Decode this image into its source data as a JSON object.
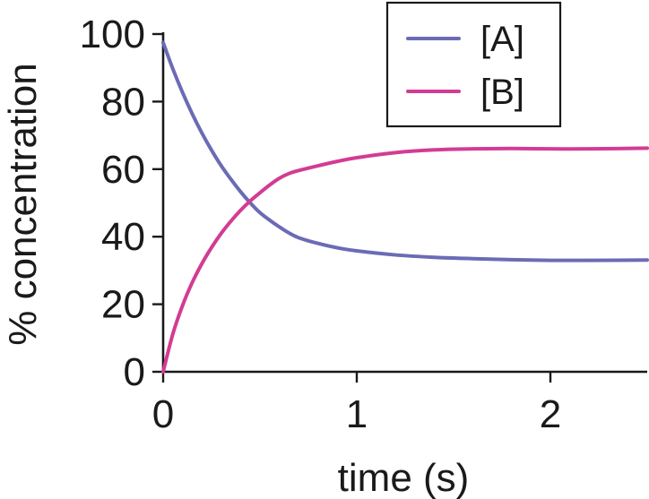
{
  "chart_data": {
    "type": "line",
    "title": "",
    "xlabel": "time (s)",
    "ylabel": "% concentration",
    "xlim": [
      0,
      2.5
    ],
    "ylim": [
      0,
      100
    ],
    "xticks": [
      0,
      1,
      2
    ],
    "yticks": [
      0,
      20,
      40,
      60,
      80,
      100
    ],
    "grid": false,
    "legend_position": "top-right",
    "series": [
      {
        "name": "[A]",
        "color": "#6b6bb5",
        "x": [
          0,
          0.05,
          0.1,
          0.15,
          0.2,
          0.25,
          0.3,
          0.35,
          0.4,
          0.45,
          0.5,
          0.55,
          0.6,
          0.65,
          0.7,
          0.8,
          0.9,
          1.0,
          1.2,
          1.4,
          1.6,
          1.8,
          2.0,
          2.2,
          2.5
        ],
        "y": [
          97.5,
          89.7,
          82.7,
          76.4,
          70.7,
          65.6,
          61.0,
          57.0,
          53.3,
          50.0,
          47.1,
          44.9,
          42.9,
          41.1,
          39.7,
          38.0,
          36.7,
          35.8,
          34.6,
          33.9,
          33.5,
          33.2,
          33.0,
          33.0,
          33.1
        ]
      },
      {
        "name": "[B]",
        "color": "#d23c93",
        "x": [
          0,
          0.05,
          0.1,
          0.15,
          0.2,
          0.25,
          0.3,
          0.35,
          0.4,
          0.45,
          0.5,
          0.55,
          0.6,
          0.65,
          0.7,
          0.8,
          0.9,
          1.0,
          1.2,
          1.4,
          1.6,
          1.8,
          2.0,
          2.2,
          2.5
        ],
        "y": [
          0.0,
          11.2,
          19.6,
          26.4,
          32.0,
          36.8,
          41.0,
          44.6,
          47.8,
          50.6,
          53.0,
          55.3,
          57.3,
          58.7,
          59.6,
          61.0,
          62.3,
          63.4,
          64.9,
          65.7,
          66.0,
          66.1,
          66.0,
          66.0,
          66.2
        ]
      }
    ]
  }
}
